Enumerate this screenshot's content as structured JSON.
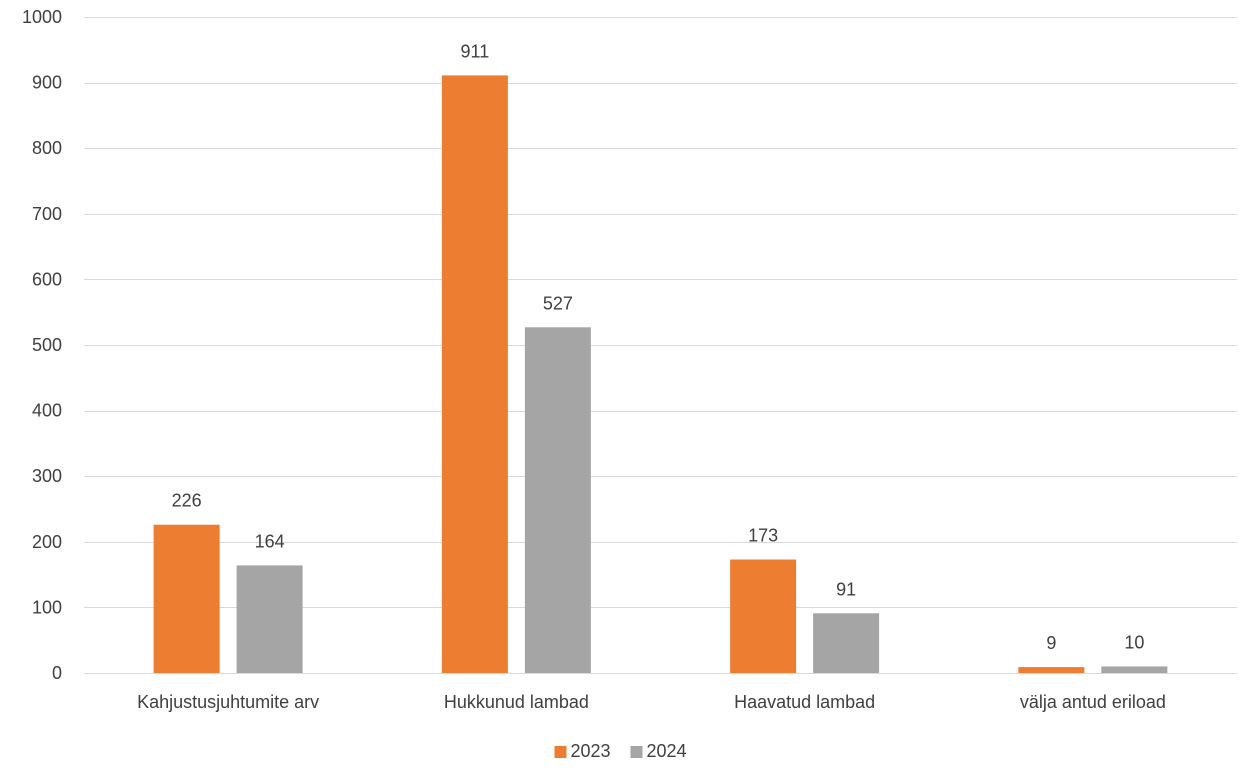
{
  "chart_data": {
    "type": "bar",
    "title": "",
    "xlabel": "",
    "ylabel": "",
    "categories": [
      "Kahjustusjuhtumite arv",
      "Hukkunud lambad",
      "Haavatud lambad",
      "välja antud eriload"
    ],
    "series": [
      {
        "name": "2023",
        "values": [
          226,
          911,
          173,
          9
        ],
        "color": "#ED7D31"
      },
      {
        "name": "2024",
        "values": [
          164,
          527,
          91,
          10
        ],
        "color": "#A5A5A5"
      }
    ],
    "ylim": [
      0,
      1000
    ],
    "yticks": [
      0,
      100,
      200,
      300,
      400,
      500,
      600,
      700,
      800,
      900,
      1000
    ],
    "grid": true,
    "legend_position": "bottom",
    "data_labels": true
  },
  "colors": {
    "gridline": "#D9D9D9",
    "text": "#404040"
  }
}
